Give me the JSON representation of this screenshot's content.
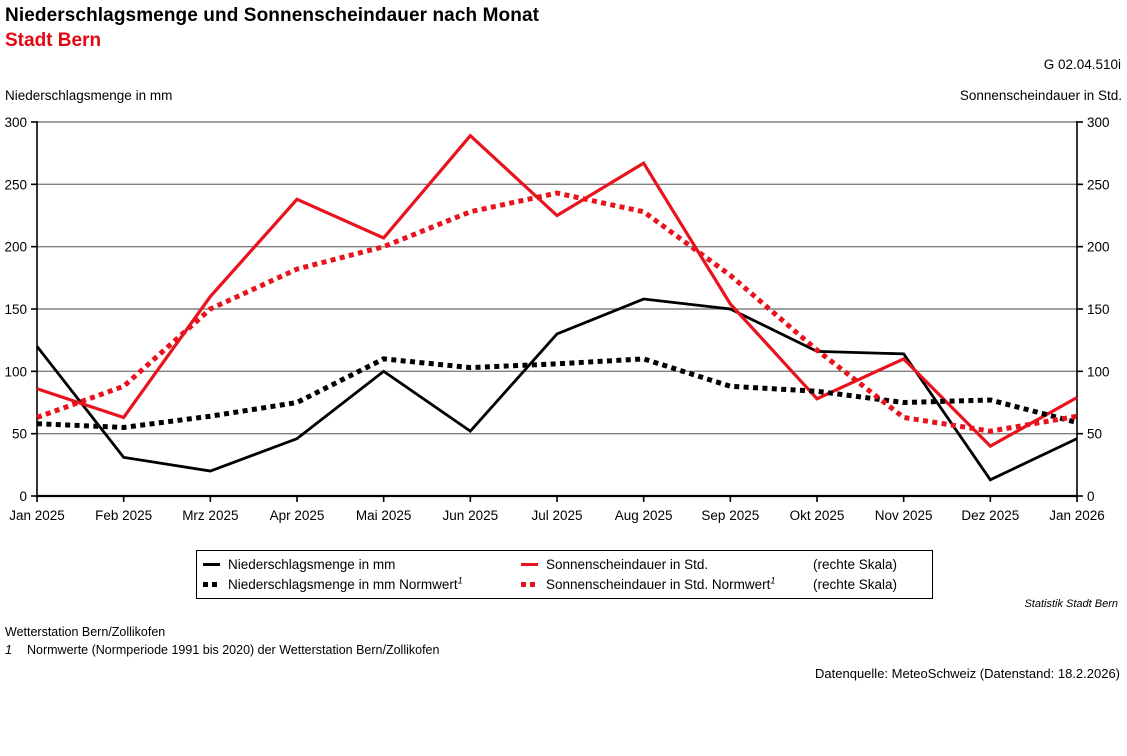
{
  "header": {
    "title": "Niederschlagsmenge und Sonnenscheindauer nach Monat",
    "subtitle": "Stadt Bern",
    "figure_code": "G 02.04.510i"
  },
  "axis_headers": {
    "left": "Niederschlagsmenge in mm",
    "right": "Sonnenscheindauer in Std."
  },
  "colors": {
    "title_red": "#e30613",
    "line_red": "#e8131d",
    "line_black": "#000000",
    "gridline_gray": "#808080"
  },
  "chart_data": {
    "type": "line",
    "title": "Niederschlagsmenge und Sonnenscheindauer nach Monat",
    "subtitle": "Stadt Bern",
    "xlabel": "",
    "ylabel_left": "Niederschlagsmenge in mm",
    "ylabel_right": "Sonnenscheindauer in Std.",
    "ylim": [
      0,
      300
    ],
    "y_ticks": [
      0,
      50,
      100,
      150,
      200,
      250,
      300
    ],
    "grid": true,
    "legend_position": "bottom",
    "categories": [
      "Jan 2025",
      "Feb 2025",
      "Mrz 2025",
      "Apr 2025",
      "Mai 2025",
      "Jun 2025",
      "Jul 2025",
      "Aug 2025",
      "Sep 2025",
      "Okt 2025",
      "Nov 2025",
      "Dez 2025",
      "Jan 2026"
    ],
    "series": [
      {
        "name": "Niederschlagsmenge in mm",
        "axis": "left",
        "style": "solid",
        "color": "#000000",
        "stroke_width": 2.8,
        "values": [
          120,
          31,
          20,
          46,
          100,
          52,
          130,
          158,
          150,
          116,
          114,
          13,
          46
        ]
      },
      {
        "name": "Sonnenscheindauer in Std.",
        "axis": "right",
        "style": "solid",
        "color": "#e8131d",
        "stroke_width": 3.2,
        "values": [
          86,
          63,
          160,
          238,
          207,
          289,
          225,
          267,
          154,
          78,
          110,
          40,
          79
        ]
      },
      {
        "name": "Niederschlagsmenge in mm Normwert",
        "axis": "left",
        "style": "dotted",
        "color": "#000000",
        "stroke_width": 5,
        "values": [
          58,
          55,
          64,
          75,
          110,
          103,
          106,
          110,
          88,
          84,
          75,
          77,
          59
        ]
      },
      {
        "name": "Sonnenscheindauer in Std. Normwert",
        "axis": "right",
        "style": "dotted",
        "color": "#e8131d",
        "stroke_width": 5,
        "values": [
          63,
          88,
          150,
          182,
          200,
          228,
          243,
          228,
          177,
          117,
          63,
          52,
          64
        ]
      }
    ]
  },
  "legend": {
    "rows": [
      {
        "left_label": "Niederschlagsmenge in mm",
        "right_label": "Sonnenscheindauer in Std.",
        "scale_note": "(rechte Skala)"
      },
      {
        "left_label": "Niederschlagsmenge in mm Normwert",
        "left_sup": "1",
        "right_label": "Sonnenscheindauer in Std. Normwert",
        "right_sup": "1",
        "scale_note": "(rechte Skala)"
      }
    ]
  },
  "credits": {
    "statistik": "Statistik Stadt Bern"
  },
  "footnotes": {
    "station": "Wetterstation Bern/Zollikofen",
    "norm_marker": "1",
    "norm_text": "Normwerte (Normperiode 1991 bis 2020) der Wetterstation Bern/Zollikofen"
  },
  "source": {
    "text": "Datenquelle: MeteoSchweiz (Datenstand: 18.2.2026)"
  }
}
